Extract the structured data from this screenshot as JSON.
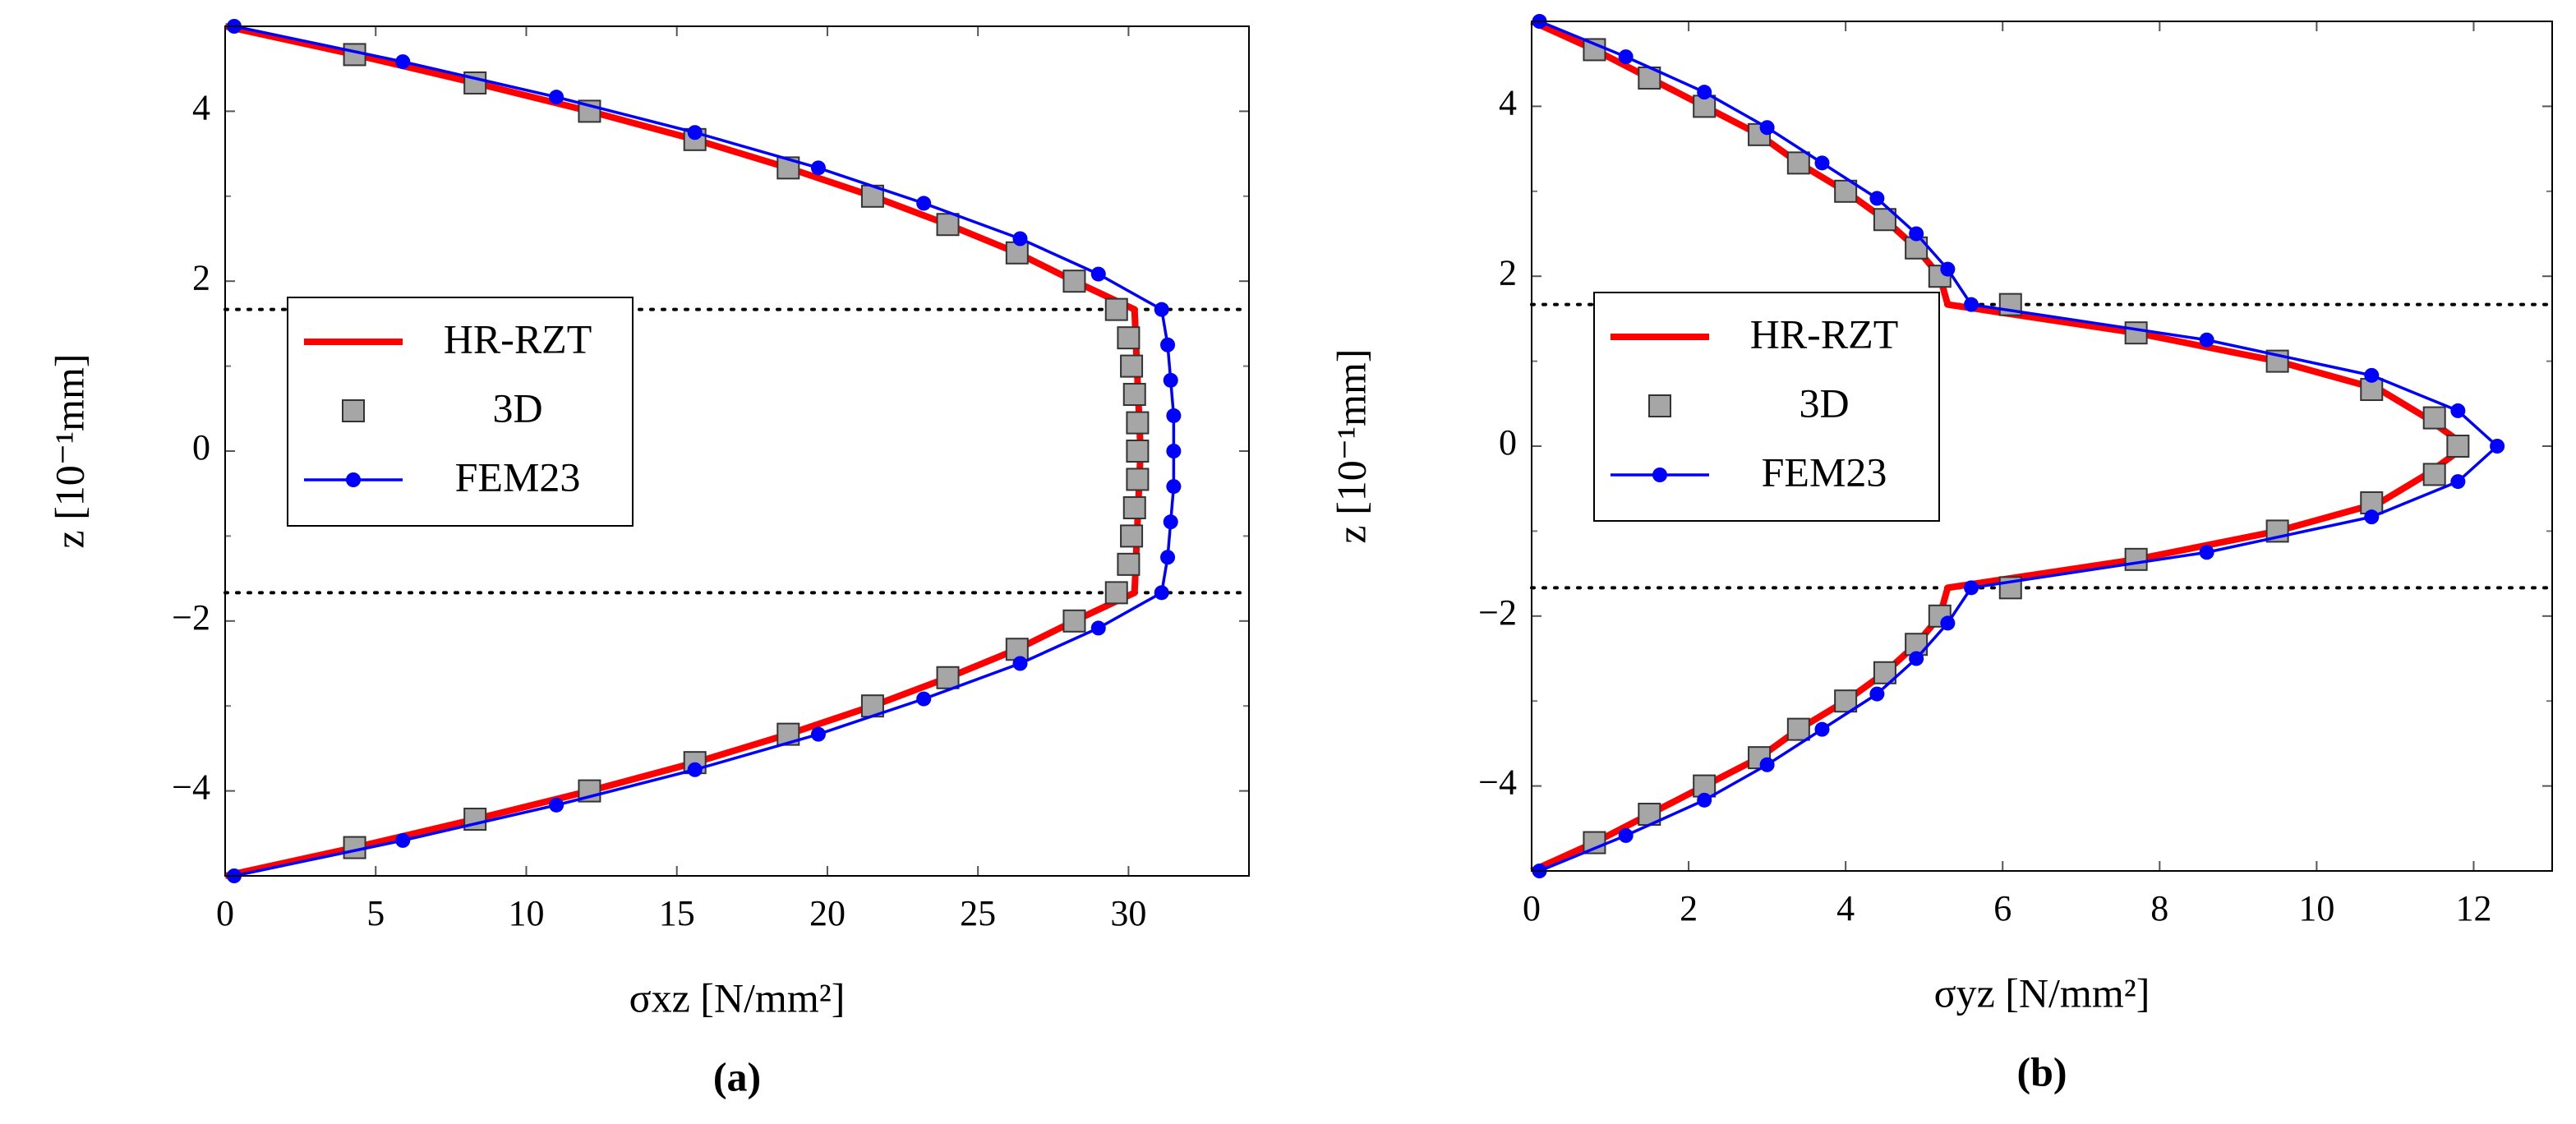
{
  "chart_data": [
    {
      "type": "line",
      "caption": "(a)",
      "xlabel": "σxz [N/mm²]",
      "ylabel": "z [10⁻¹mm]",
      "xlim": [
        0,
        34
      ],
      "ylim": [
        -5,
        5
      ],
      "xticks": [
        0,
        5,
        10,
        15,
        20,
        25,
        30
      ],
      "yticks": [
        {
          "value": -4,
          "label": "−4"
        },
        {
          "value": -2,
          "label": "−2"
        },
        0,
        2,
        4
      ],
      "yminor": [
        -3,
        -1,
        1,
        3
      ],
      "hlines": [
        1.667,
        -1.667
      ],
      "legend": "west",
      "series": [
        {
          "name": "HR-RZT",
          "color": "#ff0000",
          "marker": "none",
          "x": [
            0,
            4.3,
            8.3,
            12.1,
            15.6,
            18.7,
            21.5,
            24.0,
            26.3,
            28.2,
            30.2,
            30.4,
            30.2,
            28.2,
            26.3,
            24.0,
            21.5,
            18.7,
            15.6,
            12.1,
            8.3,
            4.3,
            0
          ],
          "y": [
            5,
            4.667,
            4.333,
            4,
            3.667,
            3.333,
            3,
            2.667,
            2.333,
            2,
            1.667,
            0,
            -1.667,
            -2,
            -2.333,
            -2.667,
            -3,
            -3.333,
            -3.667,
            -4,
            -4.333,
            -4.667,
            -5
          ]
        },
        {
          "name": "3D",
          "color": "#a6a6a6",
          "marker": "square",
          "x": [
            4.3,
            8.3,
            12.1,
            15.6,
            18.7,
            21.5,
            24.0,
            26.3,
            28.2,
            29.6,
            30.0,
            30.1,
            30.2,
            30.3,
            30.3,
            30.3,
            30.2,
            30.1,
            30.0,
            29.6,
            28.2,
            26.3,
            24.0,
            21.5,
            18.7,
            15.6,
            12.1,
            8.3,
            4.3
          ],
          "y": [
            4.667,
            4.333,
            4,
            3.667,
            3.333,
            3,
            2.667,
            2.333,
            2,
            1.667,
            1.333,
            1,
            0.667,
            0.333,
            0,
            -0.333,
            -0.667,
            -1,
            -1.333,
            -1.667,
            -2,
            -2.333,
            -2.667,
            -3,
            -3.333,
            -3.667,
            -4,
            -4.333,
            -4.667
          ]
        },
        {
          "name": "FEM23",
          "color": "#0000ff",
          "marker": "circle",
          "x": [
            0.3,
            5.9,
            11.0,
            15.6,
            19.7,
            23.2,
            26.4,
            29.0,
            31.1,
            31.3,
            31.4,
            31.5,
            31.5,
            31.5,
            31.4,
            31.3,
            31.1,
            29.0,
            26.4,
            23.2,
            19.7,
            15.6,
            11.0,
            5.9,
            0.3
          ],
          "y": [
            5,
            4.583,
            4.167,
            3.75,
            3.333,
            2.917,
            2.5,
            2.083,
            1.667,
            1.25,
            0.833,
            0.417,
            0,
            -0.417,
            -0.833,
            -1.25,
            -1.667,
            -2.083,
            -2.5,
            -2.917,
            -3.333,
            -3.75,
            -4.167,
            -4.583,
            -5
          ]
        }
      ]
    },
    {
      "type": "line",
      "caption": "(b)",
      "xlabel": "σyz [N/mm²]",
      "ylabel": "z [10⁻¹mm]",
      "xlim": [
        0,
        13
      ],
      "ylim": [
        -5,
        5
      ],
      "xticks": [
        0,
        2,
        4,
        6,
        8,
        10,
        12
      ],
      "yticks": [
        {
          "value": -4,
          "label": "−4"
        },
        {
          "value": -2,
          "label": "−2"
        },
        0,
        2,
        4
      ],
      "yminor": [
        -3,
        -1,
        1,
        3
      ],
      "hlines": [
        1.667,
        -1.667
      ],
      "legend": "west",
      "series": [
        {
          "name": "HR-RZT",
          "color": "#ff0000",
          "marker": "none",
          "x": [
            0,
            0.8,
            1.5,
            2.2,
            2.9,
            3.4,
            4.0,
            4.5,
            4.9,
            5.2,
            5.3,
            7.7,
            9.5,
            10.8,
            11.4,
            11.9,
            11.4,
            10.8,
            9.5,
            7.7,
            5.3,
            5.2,
            4.9,
            4.5,
            4.0,
            3.4,
            2.9,
            2.2,
            1.5,
            0.8,
            0
          ],
          "y": [
            5,
            4.667,
            4.333,
            4,
            3.667,
            3.333,
            3,
            2.667,
            2.333,
            2,
            1.667,
            1.333,
            1,
            0.667,
            0.333,
            0,
            -0.333,
            -0.667,
            -1,
            -1.333,
            -1.667,
            -2,
            -2.333,
            -2.667,
            -3,
            -3.333,
            -3.667,
            -4,
            -4.333,
            -4.667,
            -5
          ]
        },
        {
          "name": "3D",
          "color": "#a6a6a6",
          "marker": "square",
          "x": [
            0.8,
            1.5,
            2.2,
            2.9,
            3.4,
            4.0,
            4.5,
            4.9,
            5.2,
            6.1,
            7.7,
            9.5,
            10.7,
            11.5,
            11.8,
            11.5,
            10.7,
            9.5,
            7.7,
            6.1,
            5.2,
            4.9,
            4.5,
            4.0,
            3.4,
            2.9,
            2.2,
            1.5,
            0.8
          ],
          "y": [
            4.667,
            4.333,
            4,
            3.667,
            3.333,
            3,
            2.667,
            2.333,
            2,
            1.667,
            1.333,
            1,
            0.667,
            0.333,
            0,
            -0.333,
            -0.667,
            -1,
            -1.333,
            -1.667,
            -2,
            -2.333,
            -2.667,
            -3,
            -3.333,
            -3.667,
            -4,
            -4.333,
            -4.667
          ]
        },
        {
          "name": "FEM23",
          "color": "#0000ff",
          "marker": "circle",
          "x": [
            0.1,
            1.2,
            2.2,
            3.0,
            3.7,
            4.4,
            4.9,
            5.3,
            5.6,
            8.6,
            10.7,
            11.8,
            12.3,
            11.8,
            10.7,
            8.6,
            5.6,
            5.3,
            4.9,
            4.4,
            3.7,
            3.0,
            2.2,
            1.2,
            0.1
          ],
          "y": [
            5,
            4.583,
            4.167,
            3.75,
            3.333,
            2.917,
            2.5,
            2.083,
            1.667,
            1.25,
            0.833,
            0.417,
            0,
            -0.417,
            -0.833,
            -1.25,
            -1.667,
            -2.083,
            -2.5,
            -2.917,
            -3.333,
            -3.75,
            -4.167,
            -4.583,
            -5
          ]
        }
      ]
    }
  ]
}
